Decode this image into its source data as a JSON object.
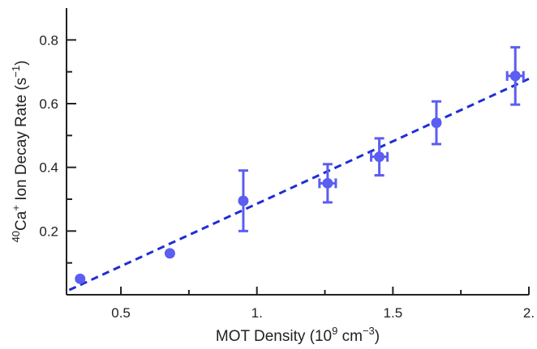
{
  "chart_data": {
    "type": "scatter",
    "x_axis": {
      "range": [
        0.3,
        2.0
      ],
      "tick_values": [
        0.5,
        1.0,
        1.5,
        2.0
      ],
      "tick_labels": [
        "0.5",
        "1.",
        "1.5",
        "2."
      ],
      "minor_tick_values": [
        0.75,
        1.25,
        1.75
      ],
      "label_parts": {
        "main": "MOT Density (10",
        "sup1": "9",
        "mid": " cm",
        "sup2": "−3",
        "end": ")"
      }
    },
    "y_axis": {
      "range": [
        0.0,
        0.9
      ],
      "tick_values": [
        0.2,
        0.4,
        0.6,
        0.8
      ],
      "tick_labels": [
        "0.2",
        "0.4",
        "0.6",
        "0.8"
      ],
      "minor_tick_values": [
        0.1,
        0.3,
        0.5,
        0.7
      ],
      "label_parts": {
        "sup_pre": "40",
        "main": "Ca",
        "sup_ion": "+",
        "rest": " Ion Decay Rate (s",
        "sup_unit": "−1",
        "end": ")"
      }
    },
    "series": [
      {
        "points": [
          {
            "x": 0.35,
            "y": 0.05,
            "yerr": 0.0,
            "xerr": 0.0
          },
          {
            "x": 0.68,
            "y": 0.13,
            "yerr": 0.0,
            "xerr": 0.0
          },
          {
            "x": 0.95,
            "y": 0.295,
            "yerr": 0.095,
            "xerr": 0.0
          },
          {
            "x": 1.26,
            "y": 0.35,
            "yerr": 0.06,
            "xerr": 0.03
          },
          {
            "x": 1.45,
            "y": 0.433,
            "yerr": 0.058,
            "xerr": 0.03
          },
          {
            "x": 1.66,
            "y": 0.54,
            "yerr": 0.067,
            "xerr": 0.0
          },
          {
            "x": 1.95,
            "y": 0.687,
            "yerr": 0.09,
            "xerr": 0.03
          }
        ]
      }
    ],
    "fit_line": {
      "x": [
        0.31,
        2.0
      ],
      "y": [
        0.015,
        0.678
      ],
      "style": "dashed"
    },
    "grid": false,
    "colors": {
      "points": "#5b5ef0",
      "fit": "#1f2ed4",
      "axes": "#222222"
    }
  }
}
